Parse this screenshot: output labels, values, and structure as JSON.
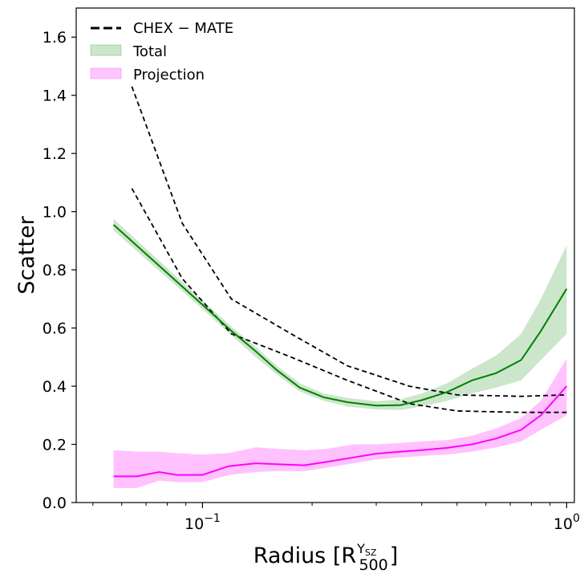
{
  "chart_data": {
    "type": "line",
    "xscale": "log",
    "xlim": [
      0.045,
      1.05
    ],
    "ylim": [
      0.0,
      1.7
    ],
    "ylabel": "Scatter",
    "xlabel": {
      "prefix": "Radius [R",
      "sub": "500",
      "sup": "Y",
      "sup_sub": "SZ",
      "suffix": "]"
    },
    "xticks": [
      {
        "value": 0.1,
        "base": "10",
        "exp": "−1"
      },
      {
        "value": 1.0,
        "base": "10",
        "exp": "0"
      }
    ],
    "yticks": [
      0.0,
      0.2,
      0.4,
      0.6,
      0.8,
      1.0,
      1.2,
      1.4,
      1.6
    ],
    "legend": {
      "position": "top-left",
      "entries": [
        {
          "label": "CHEX − MATE",
          "style": "dashed-line",
          "color": "#000000"
        },
        {
          "label": "Total",
          "style": "band",
          "color": "#008000"
        },
        {
          "label": "Projection",
          "style": "band",
          "color": "#ff00ff"
        }
      ]
    },
    "series": [
      {
        "name": "CHEX-MATE upper",
        "style": "dashed",
        "color": "#000000",
        "x": [
          0.064,
          0.088,
          0.12,
          0.175,
          0.25,
          0.37,
          0.5,
          0.75,
          1.0
        ],
        "y": [
          1.43,
          0.96,
          0.7,
          0.58,
          0.47,
          0.4,
          0.37,
          0.365,
          0.37
        ]
      },
      {
        "name": "CHEX-MATE lower",
        "style": "dashed",
        "color": "#000000",
        "x": [
          0.064,
          0.088,
          0.12,
          0.175,
          0.25,
          0.37,
          0.5,
          0.75,
          1.0
        ],
        "y": [
          1.08,
          0.77,
          0.58,
          0.5,
          0.42,
          0.34,
          0.315,
          0.31,
          0.31
        ]
      },
      {
        "name": "Total",
        "style": "band",
        "color": "#008000",
        "x": [
          0.057,
          0.1,
          0.12,
          0.14,
          0.16,
          0.185,
          0.215,
          0.25,
          0.3,
          0.35,
          0.4,
          0.47,
          0.55,
          0.64,
          0.75,
          0.85,
          1.0
        ],
        "y": [
          0.955,
          0.68,
          0.59,
          0.52,
          0.455,
          0.395,
          0.362,
          0.345,
          0.333,
          0.335,
          0.352,
          0.38,
          0.42,
          0.445,
          0.49,
          0.59,
          0.735
        ],
        "lower": [
          0.935,
          0.665,
          0.575,
          0.5,
          0.44,
          0.382,
          0.35,
          0.33,
          0.32,
          0.318,
          0.33,
          0.35,
          0.375,
          0.395,
          0.42,
          0.49,
          0.58
        ],
        "upper": [
          0.975,
          0.695,
          0.605,
          0.535,
          0.47,
          0.41,
          0.375,
          0.36,
          0.348,
          0.355,
          0.375,
          0.41,
          0.46,
          0.505,
          0.58,
          0.7,
          0.885
        ]
      },
      {
        "name": "Projection",
        "style": "band",
        "color": "#ff00ff",
        "x": [
          0.057,
          0.066,
          0.076,
          0.085,
          0.1,
          0.118,
          0.14,
          0.16,
          0.19,
          0.22,
          0.26,
          0.3,
          0.35,
          0.4,
          0.47,
          0.55,
          0.64,
          0.75,
          0.85,
          1.0
        ],
        "y": [
          0.09,
          0.09,
          0.105,
          0.095,
          0.095,
          0.125,
          0.135,
          0.132,
          0.128,
          0.14,
          0.155,
          0.168,
          0.175,
          0.18,
          0.188,
          0.2,
          0.22,
          0.25,
          0.3,
          0.4
        ],
        "lower": [
          0.05,
          0.05,
          0.075,
          0.07,
          0.07,
          0.095,
          0.105,
          0.108,
          0.108,
          0.12,
          0.135,
          0.148,
          0.155,
          0.16,
          0.165,
          0.175,
          0.19,
          0.21,
          0.25,
          0.3
        ],
        "upper": [
          0.18,
          0.175,
          0.175,
          0.17,
          0.165,
          0.17,
          0.19,
          0.185,
          0.18,
          0.185,
          0.2,
          0.2,
          0.205,
          0.21,
          0.215,
          0.23,
          0.255,
          0.29,
          0.35,
          0.495
        ]
      }
    ]
  }
}
